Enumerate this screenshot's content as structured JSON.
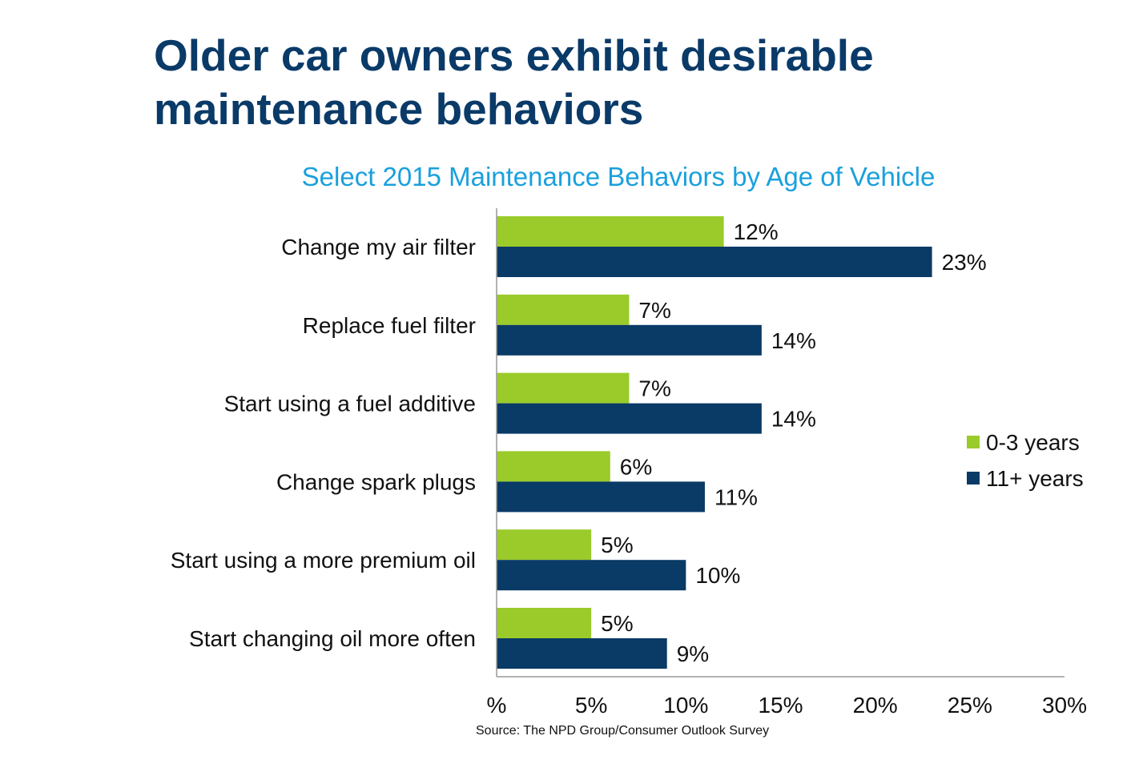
{
  "slide": {
    "title_line1": "Older car owners exhibit desirable",
    "title_line2": "maintenance behaviors"
  },
  "colors": {
    "title": "#0a3a68",
    "chart_title": "#1aa0dc",
    "series_young": "#9acb2a",
    "series_old": "#0a3a66"
  },
  "chart_data": {
    "type": "bar",
    "orientation": "horizontal",
    "title": "Select 2015 Maintenance Behaviors by Age of Vehicle",
    "categories": [
      "Change my air filter",
      "Replace fuel filter",
      "Start using a fuel additive",
      "Change spark plugs",
      "Start using a more premium oil",
      "Start changing oil more often"
    ],
    "series": [
      {
        "name": "0-3 years",
        "color": "#9acb2a",
        "values": [
          12,
          7,
          7,
          6,
          5,
          5
        ],
        "labels": [
          "12%",
          "7%",
          "7%",
          "6%",
          "5%",
          "5%"
        ]
      },
      {
        "name": "11+ years",
        "color": "#0a3a66",
        "values": [
          23,
          14,
          14,
          11,
          10,
          9
        ],
        "labels": [
          "23%",
          "14%",
          "14%",
          "11%",
          "10%",
          "9%"
        ]
      }
    ],
    "xlim": [
      0,
      30
    ],
    "x_ticks": [
      "%",
      "5%",
      "10%",
      "15%",
      "20%",
      "25%",
      "30%"
    ],
    "xlabel": "",
    "ylabel": "",
    "grid": false,
    "legend_position": "right",
    "source": "Source: The NPD Group/Consumer Outlook Survey"
  }
}
